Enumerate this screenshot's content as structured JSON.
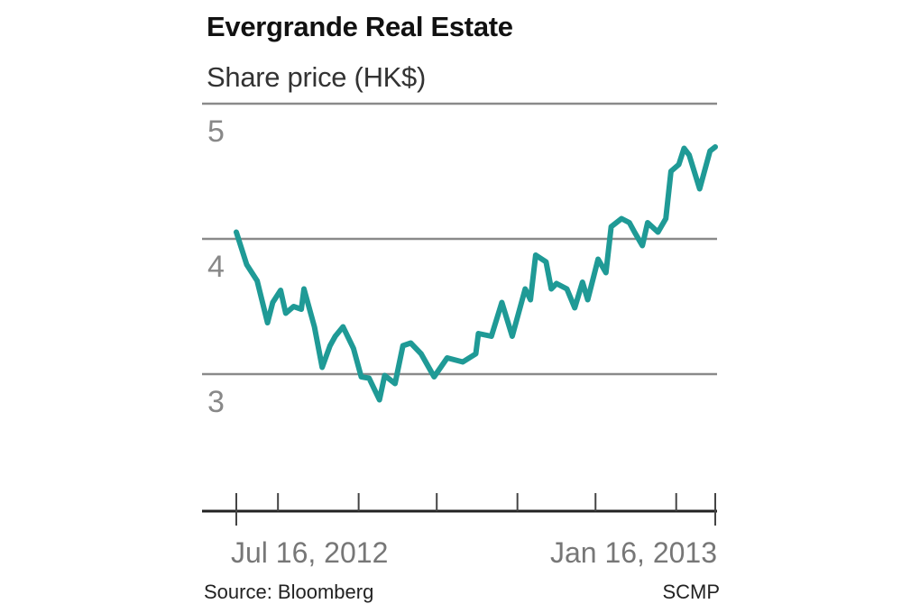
{
  "chart_data": {
    "type": "line",
    "title": "Evergrande Real Estate",
    "subtitle": "Share price (HK$)",
    "ylabel": "",
    "xlabel": "",
    "ylim": [
      2,
      5
    ],
    "xlim": [
      "2012-07-16",
      "2013-01-16"
    ],
    "yticks": [
      5,
      4,
      3
    ],
    "xtick_labels": [
      {
        "date": "2012-07-16",
        "label": "Jul 16, 2012"
      },
      {
        "date": "2013-01-16",
        "label": "Jan 16, 2013"
      }
    ],
    "minor_ticks": [
      "2012-07-16",
      "2012-08-01",
      "2012-09-01",
      "2012-10-01",
      "2012-11-01",
      "2012-12-01",
      "2013-01-01",
      "2013-01-16"
    ],
    "grid": true,
    "line_color": "#1f9a96",
    "grid_color": "#8a8a8a",
    "series": [
      {
        "x": [
          "2012-07-16",
          "2012-07-20",
          "2012-07-24",
          "2012-07-28",
          "2012-07-30",
          "2012-08-02",
          "2012-08-04",
          "2012-08-07",
          "2012-08-10",
          "2012-08-11",
          "2012-08-15",
          "2012-08-18",
          "2012-08-21",
          "2012-08-23",
          "2012-08-26",
          "2012-08-30",
          "2012-09-02",
          "2012-09-05",
          "2012-09-09",
          "2012-09-11",
          "2012-09-15",
          "2012-09-18",
          "2012-09-21",
          "2012-09-25",
          "2012-09-30",
          "2012-10-05",
          "2012-10-11",
          "2012-10-16",
          "2012-10-17",
          "2012-10-22",
          "2012-10-26",
          "2012-10-30",
          "2012-11-04",
          "2012-11-06",
          "2012-11-08",
          "2012-11-12",
          "2012-11-14",
          "2012-11-16",
          "2012-11-20",
          "2012-11-23",
          "2012-11-26",
          "2012-11-28",
          "2012-12-02",
          "2012-12-05",
          "2012-12-07",
          "2012-12-11",
          "2012-12-14",
          "2012-12-16",
          "2012-12-19",
          "2012-12-21",
          "2012-12-25",
          "2012-12-28",
          "2012-12-30",
          "2013-01-02",
          "2013-01-04",
          "2013-01-06",
          "2013-01-10",
          "2013-01-14",
          "2013-01-16"
        ],
        "y": [
          4.05,
          3.81,
          3.69,
          3.38,
          3.53,
          3.62,
          3.45,
          3.5,
          3.48,
          3.63,
          3.35,
          3.05,
          3.21,
          3.28,
          3.35,
          3.19,
          2.98,
          2.97,
          2.81,
          2.99,
          2.93,
          3.21,
          3.23,
          3.15,
          2.98,
          3.12,
          3.09,
          3.15,
          3.3,
          3.28,
          3.53,
          3.28,
          3.63,
          3.55,
          3.88,
          3.83,
          3.63,
          3.67,
          3.63,
          3.49,
          3.68,
          3.55,
          3.85,
          3.75,
          4.09,
          4.15,
          4.12,
          4.05,
          3.95,
          4.12,
          4.05,
          4.15,
          4.5,
          4.55,
          4.67,
          4.62,
          4.37,
          4.65,
          4.68
        ]
      }
    ],
    "source": "Source: Bloomberg",
    "credit": "SCMP"
  }
}
